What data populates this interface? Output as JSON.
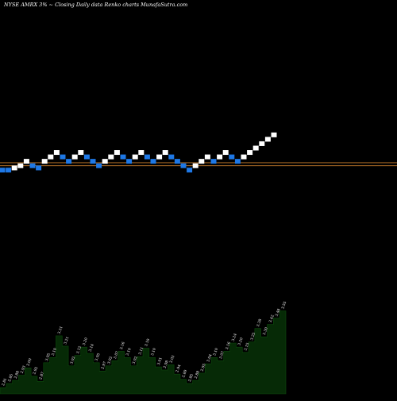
{
  "header": {
    "text": "NYSE AMRX  3% ~  Closing Daily data  Renko  charts MunafaSutra.com"
  },
  "colors": {
    "background": "#000000",
    "up_brick": "#ffffff",
    "down_brick": "#1e78e6",
    "reference_line": "#c47a2a",
    "area_fill": "#062a06",
    "area_stroke": "#0c4a0c",
    "label": "#ffffff"
  },
  "chart_data": {
    "type": "renko",
    "brick_levels": [
      2.9,
      2.9,
      2.93,
      2.96,
      3.02,
      2.96,
      2.93,
      3.02,
      3.08,
      3.14,
      3.08,
      3.02,
      3.08,
      3.14,
      3.08,
      3.02,
      2.96,
      3.02,
      3.08,
      3.14,
      3.08,
      3.02,
      3.08,
      3.14,
      3.08,
      3.02,
      3.08,
      3.14,
      3.08,
      3.02,
      2.96,
      2.9,
      2.96,
      3.02,
      3.08,
      3.02,
      3.08,
      3.14,
      3.08,
      3.02,
      3.08,
      3.14,
      3.2,
      3.26,
      3.32,
      3.38
    ],
    "brick_directions": [
      "down",
      "down",
      "up",
      "up",
      "up",
      "down",
      "down",
      "up",
      "up",
      "up",
      "down",
      "down",
      "up",
      "up",
      "down",
      "down",
      "down",
      "up",
      "up",
      "up",
      "down",
      "down",
      "up",
      "up",
      "down",
      "down",
      "up",
      "up",
      "down",
      "down",
      "down",
      "down",
      "up",
      "up",
      "up",
      "down",
      "up",
      "up",
      "down",
      "down",
      "up",
      "up",
      "up",
      "up",
      "up",
      "up"
    ],
    "reference_lines": [
      3.0,
      2.96
    ],
    "volume_values": [
      2.81,
      2.85,
      2.88,
      2.93,
      3.0,
      2.92,
      2.87,
      3.05,
      3.1,
      3.31,
      3.21,
      3.02,
      3.12,
      3.2,
      3.14,
      3.05,
      2.97,
      3.02,
      3.07,
      3.16,
      3.1,
      3.02,
      3.11,
      3.19,
      3.1,
      3.01,
      2.98,
      3.03,
      2.94,
      2.89,
      2.85,
      2.88,
      2.95,
      3.04,
      3.1,
      3.07,
      3.16,
      3.24,
      3.2,
      3.15,
      3.25,
      3.38,
      3.3,
      3.42,
      3.48,
      3.55
    ],
    "volume_labels": [
      "2.81",
      "2.85",
      "2.88",
      "2.93",
      "3.00",
      "2.92",
      "2.87",
      "3.05",
      "3.10",
      "3.31",
      "3.21",
      "3.02",
      "3.12",
      "3.20",
      "3.14",
      "3.05",
      "2.97",
      "3.02",
      "3.07",
      "3.16",
      "3.10",
      "3.02",
      "3.11",
      "3.19",
      "3.10",
      "3.01",
      "2.98",
      "3.03",
      "2.94",
      "2.89",
      "2.85",
      "2.88",
      "2.95",
      "3.04",
      "3.10",
      "3.07",
      "3.16",
      "3.24",
      "3.20",
      "3.15",
      "3.25",
      "3.38",
      "3.30",
      "3.42",
      "3.48",
      "3.55"
    ],
    "price_range": [
      2.87,
      3.4
    ],
    "volume_range": [
      2.75,
      3.6
    ],
    "grid": false
  }
}
